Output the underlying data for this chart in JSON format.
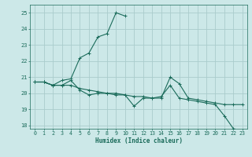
{
  "title": "",
  "xlabel": "Humidex (Indice chaleur)",
  "ylabel": "",
  "background_color": "#cce8e8",
  "grid_color": "#aacccc",
  "line_color": "#1a6b5a",
  "xlim": [
    -0.5,
    23.5
  ],
  "ylim": [
    17.8,
    25.5
  ],
  "yticks": [
    18,
    19,
    20,
    21,
    22,
    23,
    24,
    25
  ],
  "xticks": [
    0,
    1,
    2,
    3,
    4,
    5,
    6,
    7,
    8,
    9,
    10,
    11,
    12,
    13,
    14,
    15,
    16,
    17,
    18,
    19,
    20,
    21,
    22,
    23
  ],
  "series1_x": [
    0,
    1,
    2,
    3,
    4,
    5,
    6,
    7,
    8,
    9,
    10,
    11,
    12,
    13,
    14,
    15,
    16,
    17,
    18,
    19,
    20,
    21,
    22,
    23
  ],
  "series1_y": [
    20.7,
    20.7,
    20.5,
    20.5,
    20.8,
    20.2,
    19.9,
    20.0,
    20.0,
    19.9,
    19.9,
    19.2,
    19.7,
    19.7,
    19.8,
    20.5,
    19.7,
    19.6,
    19.5,
    19.4,
    19.3,
    18.6,
    17.8,
    17.7
  ],
  "series2_x": [
    0,
    1,
    2,
    3,
    4,
    5,
    6,
    7,
    8,
    9,
    10
  ],
  "series2_y": [
    20.7,
    20.7,
    20.5,
    20.8,
    20.9,
    22.2,
    22.5,
    23.5,
    23.7,
    25.0,
    24.8
  ],
  "series3_x": [
    0,
    1,
    2,
    3,
    4,
    5,
    6,
    7,
    8,
    9,
    10,
    11,
    12,
    13,
    14,
    15,
    16,
    17,
    18,
    19,
    20,
    21,
    22,
    23
  ],
  "series3_y": [
    20.7,
    20.7,
    20.5,
    20.5,
    20.5,
    20.3,
    20.2,
    20.1,
    20.0,
    20.0,
    19.9,
    19.8,
    19.8,
    19.7,
    19.7,
    21.0,
    20.6,
    19.7,
    19.6,
    19.5,
    19.4,
    19.3,
    19.3,
    19.3
  ]
}
